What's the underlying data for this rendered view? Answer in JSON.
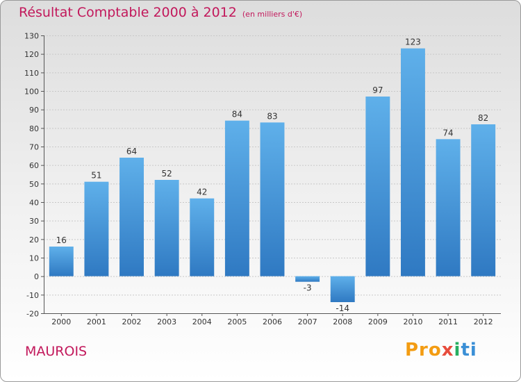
{
  "header": {
    "title": "Résultat Comptable 2000 à 2012",
    "subtitle": "(en milliers d'€)"
  },
  "footer": {
    "place_name": "MAUROIS",
    "logo": {
      "p1": "Pro",
      "p2": "x",
      "p3": "i",
      "p4": "ti"
    }
  },
  "chart_data": {
    "type": "bar",
    "title": "Résultat Comptable 2000 à 2012",
    "subtitle": "(en milliers d'€)",
    "xlabel": "",
    "ylabel": "",
    "categories": [
      "2000",
      "2001",
      "2002",
      "2003",
      "2004",
      "2005",
      "2006",
      "2007",
      "2008",
      "2009",
      "2010",
      "2011",
      "2012"
    ],
    "values": [
      16,
      51,
      64,
      52,
      42,
      84,
      83,
      -3,
      -14,
      97,
      123,
      74,
      82
    ],
    "ylim": [
      -20,
      130
    ],
    "yticks": [
      -20,
      -10,
      0,
      10,
      20,
      30,
      40,
      50,
      60,
      70,
      80,
      90,
      100,
      110,
      120,
      130
    ],
    "grid": true,
    "colors": {
      "bar_top": "#5fb0ea",
      "bar_bottom": "#2f79c2",
      "grid": "#c8c8c8",
      "axis": "#555555",
      "text": "#333333"
    }
  }
}
